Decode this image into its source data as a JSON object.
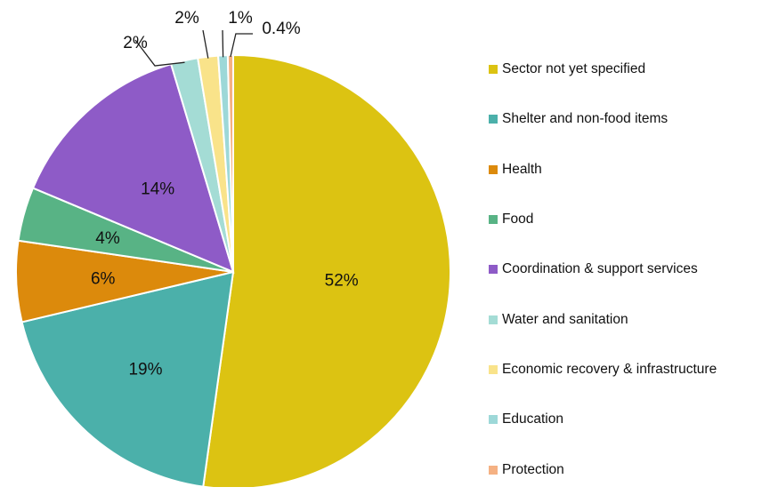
{
  "chart_data": {
    "type": "pie",
    "slices": [
      {
        "name": "Sector not yet specified",
        "value": 52,
        "label": "52%",
        "color": "#dcc312"
      },
      {
        "name": "Shelter and non-food items",
        "value": 19,
        "label": "19%",
        "color": "#4bb0aa"
      },
      {
        "name": "Health",
        "value": 6,
        "label": "6%",
        "color": "#dc8a0c"
      },
      {
        "name": "Food",
        "value": 4,
        "label": "4%",
        "color": "#58b385"
      },
      {
        "name": "Coordination & support services",
        "value": 14,
        "label": "14%",
        "color": "#8e5bc7"
      },
      {
        "name": "Water and sanitation",
        "value": 2,
        "label": "2%",
        "color": "#a4dcd5"
      },
      {
        "name": "Economic recovery & infrastructure",
        "value": 1.5,
        "label": "2%",
        "color": "#f9e38a"
      },
      {
        "name": "Education",
        "value": 0.7,
        "label": "1%",
        "color": "#9dd8d8"
      },
      {
        "name": "Protection",
        "value": 0.4,
        "label": "0.4%",
        "color": "#f5b183"
      }
    ],
    "legend_position": "right",
    "start_angle": "12 o'clock, clockwise"
  }
}
